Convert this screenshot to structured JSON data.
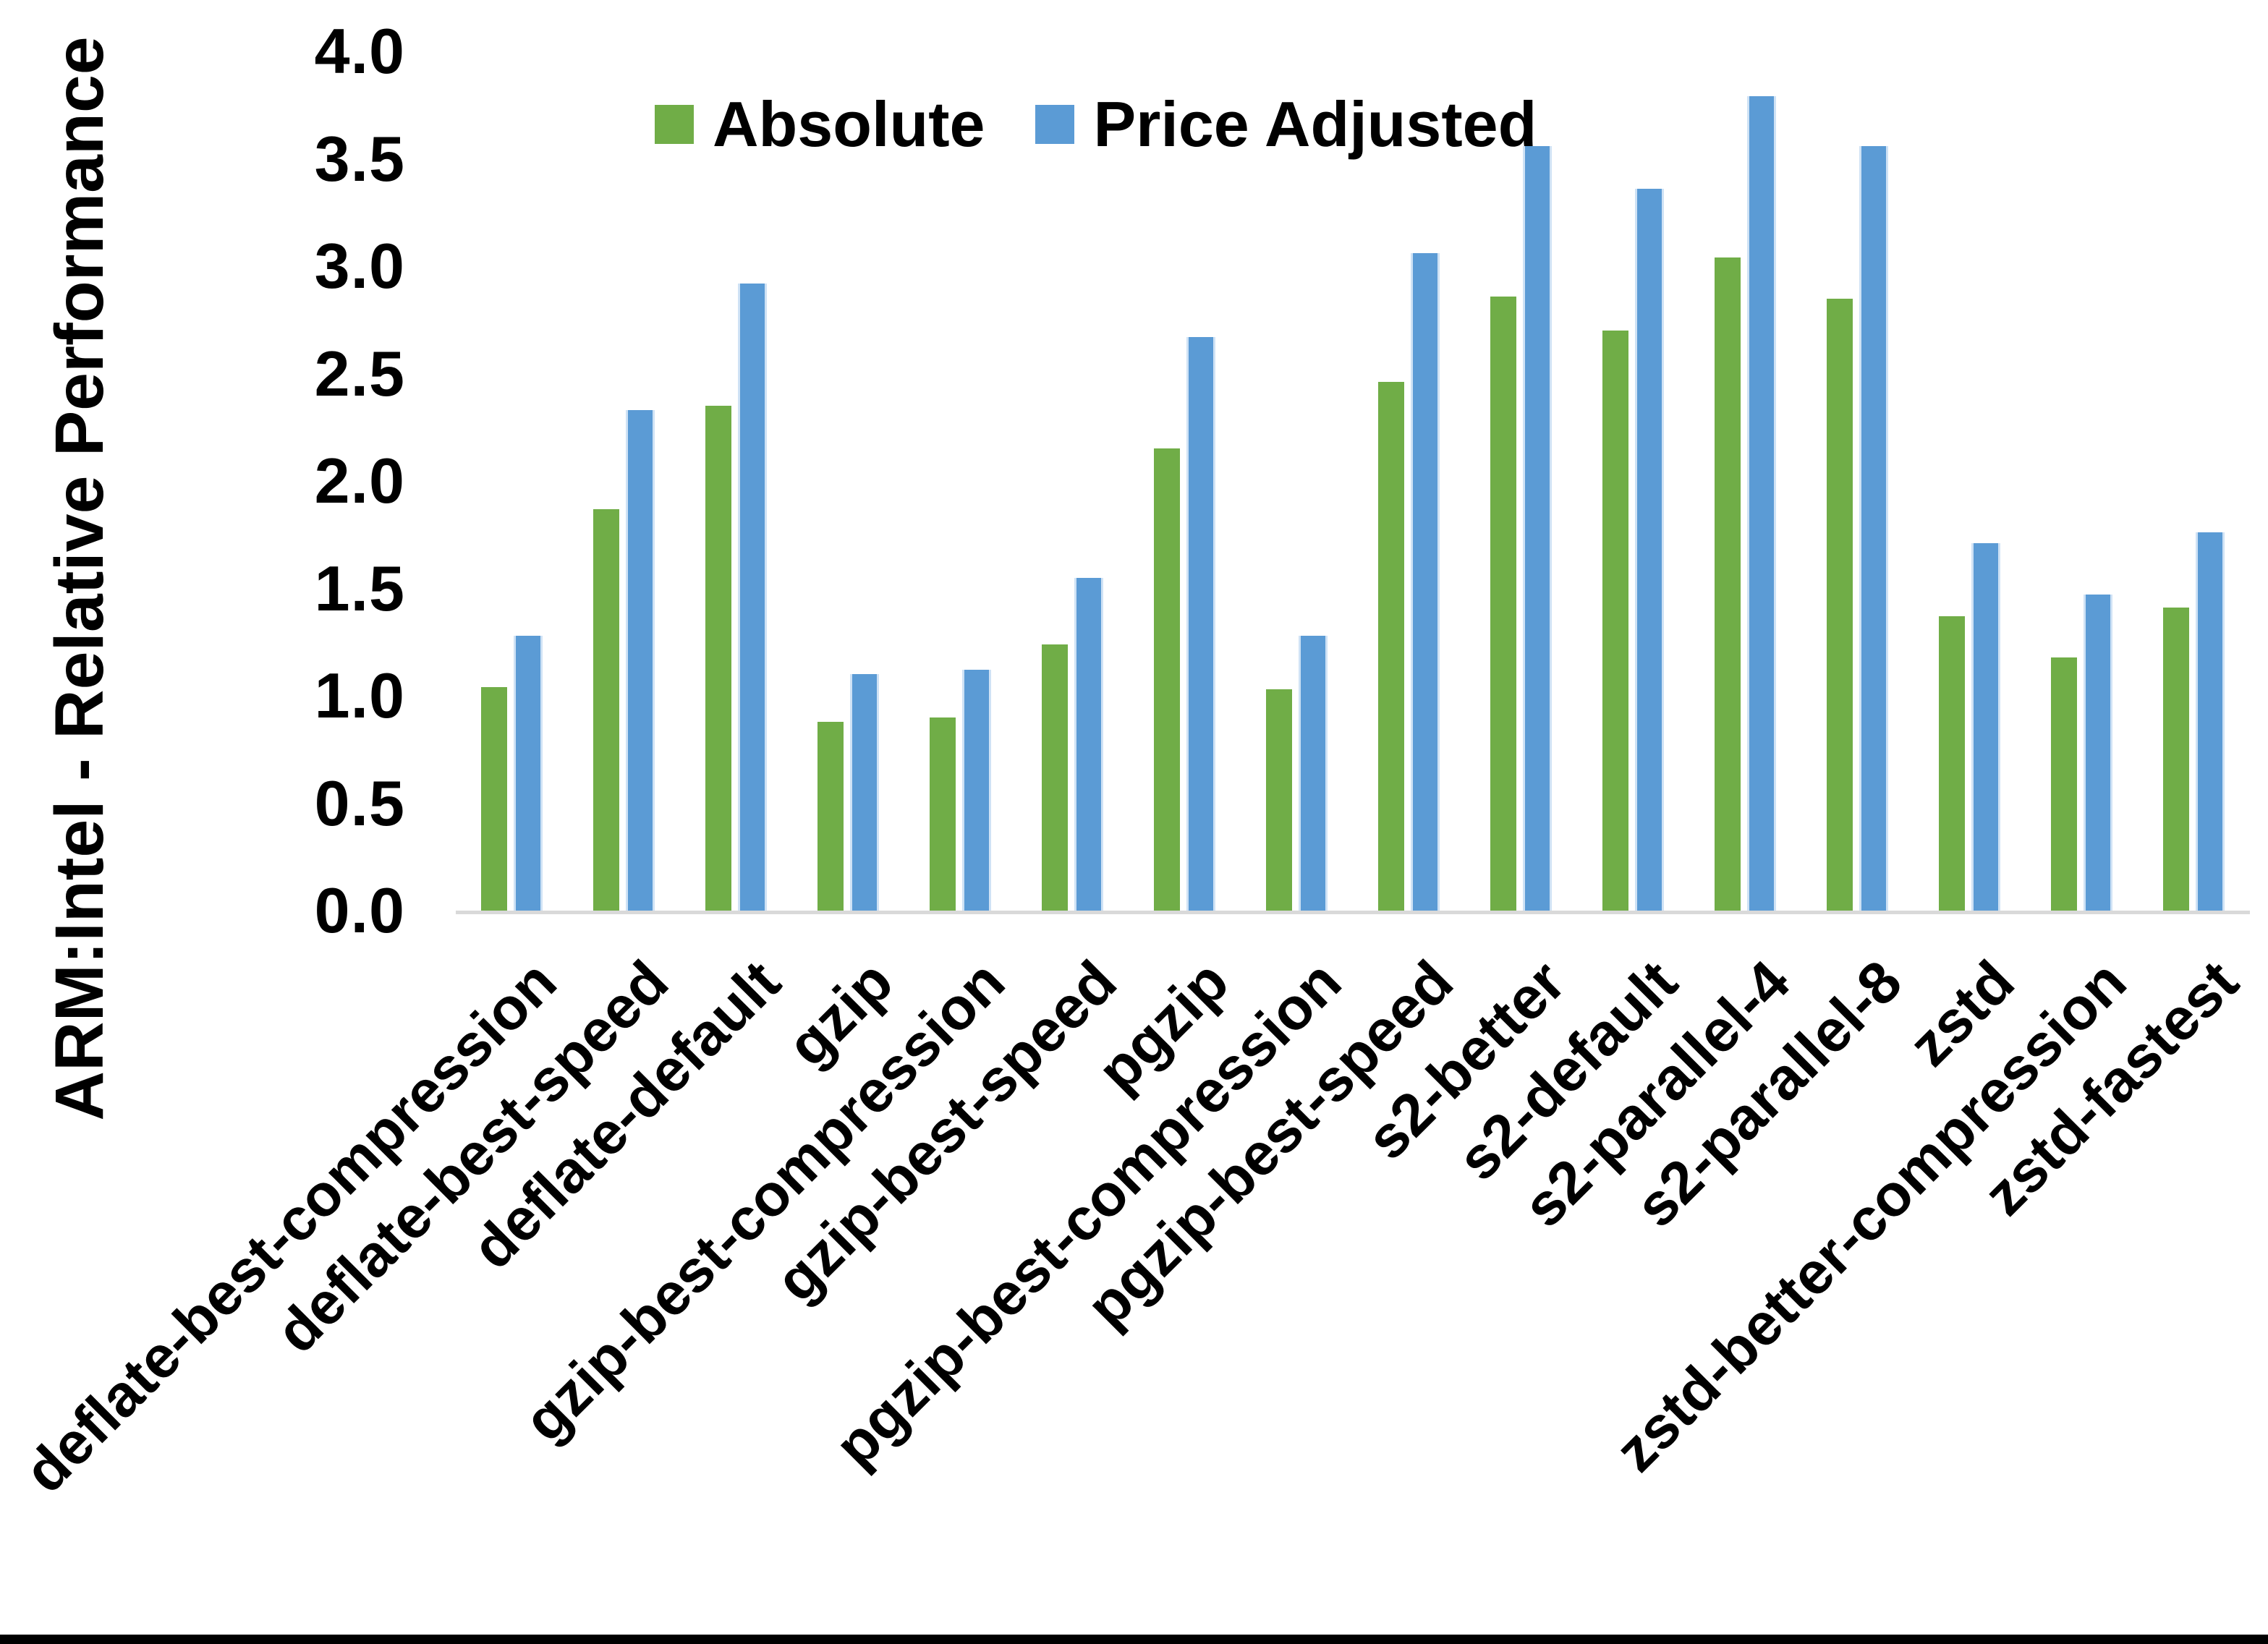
{
  "chart_data": {
    "type": "bar",
    "title": "",
    "ylabel": "ARM:Intel - Relative Performance",
    "xlabel": "",
    "ylim": [
      0,
      4
    ],
    "grid": false,
    "legend_position": "top-center",
    "axis_line_color": "#d9d9d9",
    "yticks": [
      "0.0",
      "0.5",
      "1.0",
      "1.5",
      "2.0",
      "2.5",
      "3.0",
      "3.5",
      "4.0"
    ],
    "categories": [
      "deflate-best-compression",
      "deflate-best-speed",
      "deflate-default",
      "gzip",
      "gzip-best-compression",
      "gzip-best-speed",
      "pgzip",
      "pgzip-best-compression",
      "pgzip-best-speed",
      "s2-better",
      "s2-default",
      "s2-parallel-4",
      "s2-parallel-8",
      "zstd",
      "zstd-better-compression",
      "zstd-fastest"
    ],
    "series": [
      {
        "name": "Absolute",
        "color": "#70AD47",
        "values": [
          1.04,
          1.87,
          2.35,
          0.88,
          0.9,
          1.24,
          2.15,
          1.03,
          2.46,
          2.86,
          2.7,
          3.04,
          2.85,
          1.37,
          1.18,
          1.41
        ]
      },
      {
        "name": "Price Adjusted",
        "color": "#5B9BD5",
        "values": [
          1.28,
          2.33,
          2.92,
          1.1,
          1.12,
          1.55,
          2.67,
          1.28,
          3.06,
          3.56,
          3.36,
          3.79,
          3.56,
          1.71,
          1.47,
          1.76
        ]
      }
    ]
  }
}
